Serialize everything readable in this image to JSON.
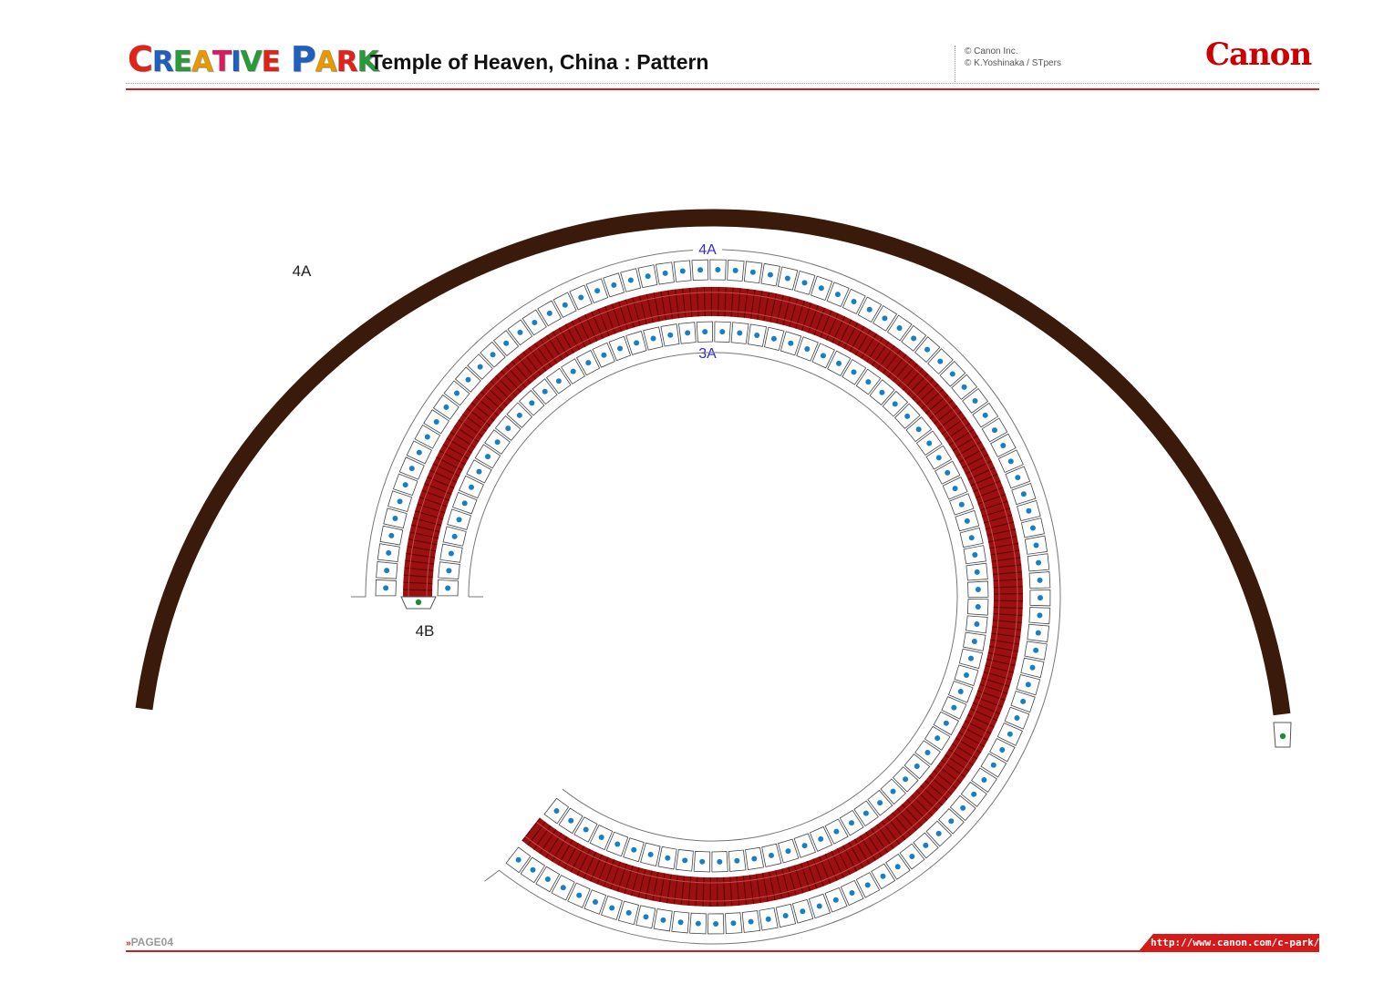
{
  "header": {
    "logo_letters": [
      {
        "ch": "C",
        "color": "#e2231a",
        "small": false
      },
      {
        "ch": "R",
        "color": "#1f5fbf",
        "small": true
      },
      {
        "ch": "E",
        "color": "#2a9a3b",
        "small": true
      },
      {
        "ch": "A",
        "color": "#e89a00",
        "small": true
      },
      {
        "ch": "T",
        "color": "#d81b60",
        "small": true
      },
      {
        "ch": "I",
        "color": "#1f5fbf",
        "small": true
      },
      {
        "ch": "V",
        "color": "#2a9a3b",
        "small": true
      },
      {
        "ch": "E",
        "color": "#e2231a",
        "small": true
      },
      {
        "ch": " ",
        "color": "#000000",
        "small": true
      },
      {
        "ch": "P",
        "color": "#1f5fbf",
        "small": false
      },
      {
        "ch": "A",
        "color": "#e89a00",
        "small": true
      },
      {
        "ch": "R",
        "color": "#e2231a",
        "small": true
      },
      {
        "ch": "K",
        "color": "#2a9a3b",
        "small": true
      }
    ],
    "title": "Temple of Heaven, China : Pattern",
    "copyright_lines": [
      "© Canon Inc.",
      "© K.Yoshinaka  / STpers"
    ],
    "brand": "Canon"
  },
  "labels": {
    "big_arc": "4A",
    "ring_top": "4A",
    "ring_inner": "3A",
    "tab_left": "4B"
  },
  "footer": {
    "arrows": "»",
    "page": "PAGE04",
    "url": "http://www.canon.com/c-park/"
  },
  "colors": {
    "accent_red": "#d51a1a",
    "arc_brown": "#3a1a0a",
    "band_red": "#9b1010",
    "dot_blue": "#1a7fc0",
    "dot_green": "#1e8a3a"
  }
}
